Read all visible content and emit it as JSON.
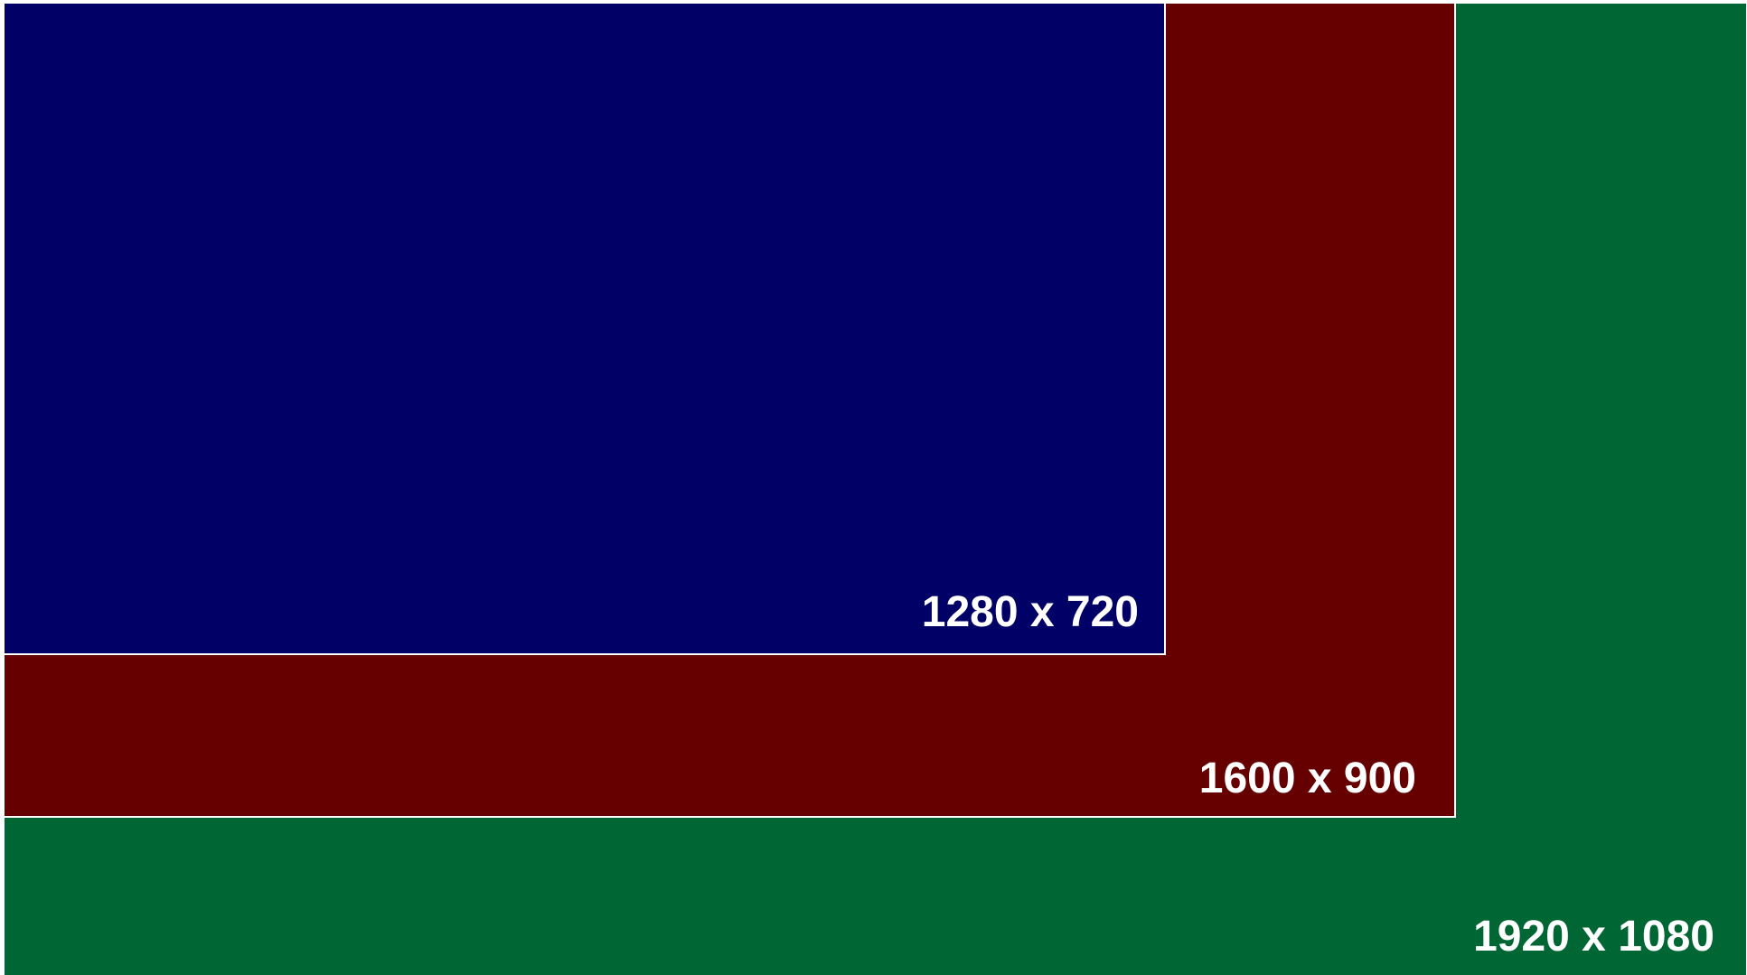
{
  "resolutions": {
    "large": {
      "label": "1920 x 1080",
      "color": "#006633"
    },
    "medium": {
      "label": "1600 x 900",
      "color": "#660000"
    },
    "small": {
      "label": "1280 x 720",
      "color": "#000066"
    }
  }
}
